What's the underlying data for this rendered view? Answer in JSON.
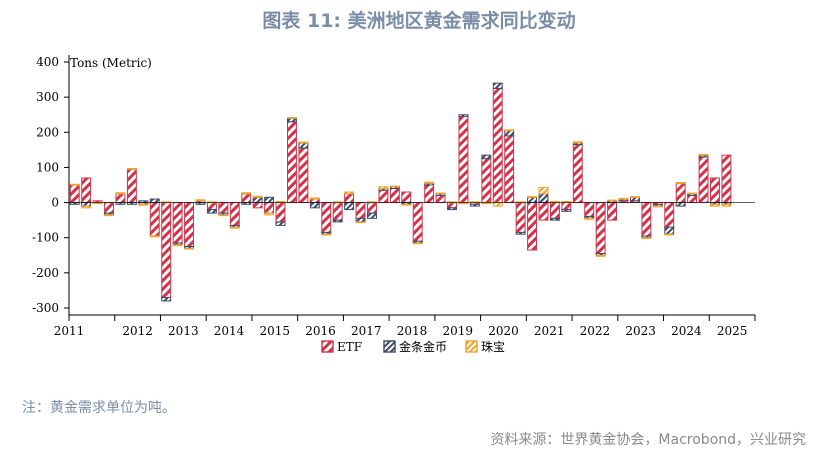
{
  "header": {
    "title": "图表 11: 美洲地区黄金需求同比变动"
  },
  "footer": {
    "note": "注：黄金需求单位为吨。",
    "source": "资料来源：世界黄金协会，Macrobond，兴业研究"
  },
  "colors": {
    "etf": "#d2334a",
    "coins": "#3f4a67",
    "jewelry": "#f0a22a",
    "title": "#7b8ea8"
  },
  "chart_data": {
    "type": "bar",
    "stacked": true,
    "ylabel": "Tons (Metric)",
    "ylim": [
      -320,
      420
    ],
    "yticks": [
      400,
      300,
      200,
      100,
      0,
      -100,
      -200,
      -300
    ],
    "years": [
      "2011",
      "2012",
      "2013",
      "2014",
      "2015",
      "2016",
      "2017",
      "2018",
      "2019",
      "2020",
      "2021",
      "2022",
      "2023",
      "2024",
      "2025"
    ],
    "legend_position": "bottom-center",
    "quarters_per_year": 4,
    "first_year": 2011,
    "last_quarter": "2025Q3",
    "series": [
      {
        "name": "ETF",
        "values": [
          50,
          70,
          5,
          -30,
          25,
          95,
          -5,
          -95,
          -270,
          -115,
          -125,
          5,
          -20,
          -30,
          -65,
          25,
          -15,
          -30,
          -55,
          230,
          155,
          10,
          -85,
          -50,
          25,
          -45,
          -30,
          35,
          40,
          30,
          -110,
          50,
          20,
          -15,
          245,
          -5,
          125,
          325,
          190,
          -85,
          -135,
          -50,
          -45,
          -20,
          165,
          -40,
          -145,
          -50,
          5,
          5,
          -95,
          -5,
          -70,
          55,
          20,
          130,
          70,
          135,
          0,
          0
        ]
      },
      {
        "name": "金条金币",
        "values": [
          -5,
          -10,
          0,
          -5,
          -5,
          -5,
          5,
          10,
          -10,
          -5,
          -5,
          -5,
          -10,
          -5,
          -5,
          -5,
          15,
          15,
          -10,
          10,
          15,
          -15,
          -5,
          -5,
          -20,
          -10,
          -15,
          5,
          5,
          -5,
          -5,
          5,
          5,
          -5,
          5,
          -5,
          10,
          15,
          15,
          -5,
          15,
          25,
          -5,
          -5,
          5,
          -5,
          -5,
          5,
          5,
          10,
          -5,
          -5,
          -20,
          -10,
          5,
          5,
          -5,
          -5,
          0,
          0
        ]
      },
      {
        "name": "珠宝",
        "values": [
          2,
          -5,
          -3,
          -2,
          3,
          2,
          -2,
          -2,
          2,
          -2,
          -2,
          3,
          2,
          -2,
          -3,
          3,
          3,
          -5,
          3,
          2,
          2,
          3,
          -2,
          2,
          5,
          -2,
          2,
          5,
          2,
          -2,
          -2,
          3,
          2,
          2,
          -3,
          2,
          -3,
          -10,
          2,
          2,
          2,
          18,
          3,
          3,
          3,
          -2,
          -3,
          2,
          2,
          2,
          -2,
          -2,
          -2,
          2,
          2,
          2,
          -5,
          -5,
          0,
          0
        ]
      }
    ]
  }
}
